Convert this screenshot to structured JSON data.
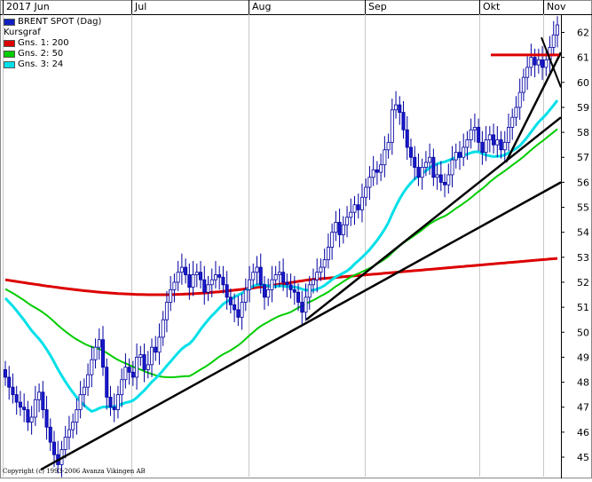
{
  "chart_data": {
    "type": "candlestick",
    "title": "BRENT SPOT (Dag)",
    "subtitle": "Kursgraf",
    "x_ticks": [
      "2017 Jun",
      "Jul",
      "Aug",
      "Sep",
      "Okt",
      "Nov"
    ],
    "y_ticks": [
      45,
      46,
      47,
      48,
      49,
      50,
      51,
      52,
      53,
      54,
      55,
      56,
      57,
      58,
      59,
      60,
      61,
      62
    ],
    "ylim": [
      44.3,
      63.3
    ],
    "y_axis_side": "right",
    "grid": "vertical only",
    "legend_position": "top-left",
    "legend": [
      {
        "name": "BRENT SPOT (Dag)",
        "color": "#0000cc"
      },
      {
        "name": "Kursgraf",
        "color": null
      },
      {
        "name": "Gns. 1: 200",
        "color": "#dd0000"
      },
      {
        "name": "Gns. 2: 50",
        "color": "#00cc00"
      },
      {
        "name": "Gns. 3: 24",
        "color": "#00e0e8"
      }
    ],
    "candles_close": [
      48.2,
      47.8,
      47.5,
      47.2,
      47.0,
      46.9,
      46.4,
      46.6,
      47.3,
      47.6,
      46.9,
      46.2,
      45.6,
      45.1,
      44.7,
      45.3,
      45.8,
      46.1,
      46.4,
      46.9,
      47.5,
      47.8,
      48.3,
      48.9,
      49.4,
      49.7,
      48.6,
      47.4,
      47.0,
      46.9,
      47.5,
      48.1,
      48.6,
      48.4,
      48.2,
      49.0,
      49.1,
      48.5,
      48.7,
      49.4,
      49.2,
      49.8,
      50.5,
      51.2,
      51.7,
      52.0,
      52.4,
      52.6,
      52.3,
      51.8,
      52.3,
      52.4,
      52.1,
      51.6,
      51.9,
      52.1,
      52.3,
      52.2,
      51.9,
      51.4,
      51.1,
      50.9,
      50.6,
      51.2,
      51.7,
      52.1,
      52.4,
      52.6,
      51.9,
      51.4,
      51.7,
      52.1,
      52.3,
      52.4,
      52.0,
      51.9,
      51.7,
      51.6,
      51.2,
      50.8,
      51.4,
      51.9,
      52.1,
      52.4,
      52.6,
      52.9,
      53.4,
      54.0,
      54.4,
      53.9,
      54.3,
      54.6,
      54.8,
      55.1,
      54.9,
      55.4,
      55.8,
      56.2,
      56.5,
      56.4,
      56.7,
      57.3,
      57.6,
      58.9,
      59.1,
      58.8,
      58.1,
      57.4,
      57.0,
      56.6,
      56.2,
      56.6,
      56.8,
      57.0,
      56.2,
      56.3,
      56.0,
      55.9,
      56.3,
      56.9,
      57.2,
      57.0,
      57.4,
      57.7,
      58.1,
      58.2,
      57.6,
      57.2,
      57.7,
      57.9,
      57.5,
      57.7,
      57.3,
      57.6,
      58.2,
      58.6,
      59.0,
      59.6,
      60.2,
      60.6,
      61.0,
      60.7,
      60.9,
      60.6,
      60.9,
      61.4,
      61.9,
      62.3
    ],
    "trendlines": [
      {
        "from": [
          44.5,
          "2017 Jun"
        ],
        "to": [
          56.0,
          "Nov"
        ],
        "color": "#000000"
      },
      {
        "from": [
          50.5,
          "Aug"
        ],
        "to": [
          58.6,
          "Nov"
        ],
        "color": "#000000"
      },
      {
        "from": [
          56.8,
          "Okt"
        ],
        "to": [
          61.2,
          "Nov"
        ],
        "color": "#000000"
      },
      {
        "level": 61.1,
        "color": "#dd0000"
      }
    ]
  },
  "legend_title": "BRENT SPOT (Dag)",
  "legend_subtitle": "Kursgraf",
  "legend_items": [
    {
      "label": "Gns. 1: 200",
      "color": "#dd0000"
    },
    {
      "label": "Gns. 2: 50",
      "color": "#00cc00"
    },
    {
      "label": "Gns. 3: 24",
      "color": "#00e0e8"
    }
  ],
  "copyright": "Copyright (c) 1993-2006 Avanza Vikingen AB"
}
